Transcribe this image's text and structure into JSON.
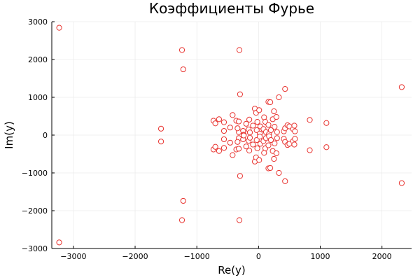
{
  "chart_data": {
    "type": "scatter",
    "title": "Коэффициенты Фурье",
    "xlabel": "Re(y)",
    "ylabel": "Im(y)",
    "xlim": [
      -3350,
      2480
    ],
    "ylim": [
      -3000,
      3000
    ],
    "xticks": [
      -3000,
      -2000,
      -1000,
      0,
      1000,
      2000
    ],
    "yticks": [
      -3000,
      -2000,
      -1000,
      0,
      1000,
      2000,
      3000
    ],
    "xtick_labels": [
      "−3000",
      "−2000",
      "−1000",
      "0",
      "1000",
      "2000"
    ],
    "ytick_labels": [
      "−3000",
      "−2000",
      "−1000",
      "0",
      "1000",
      "2000",
      "3000"
    ],
    "grid": true,
    "legend": "none",
    "marker": "open-circle",
    "color": "#e8332f",
    "points": [
      [
        -3230,
        2840
      ],
      [
        -3230,
        -2840
      ],
      [
        -1240,
        2250
      ],
      [
        -1240,
        -2250
      ],
      [
        -1220,
        1740
      ],
      [
        -1220,
        -1740
      ],
      [
        -310,
        2250
      ],
      [
        -310,
        -2250
      ],
      [
        2320,
        1270
      ],
      [
        2320,
        -1270
      ],
      [
        -1580,
        170
      ],
      [
        -1580,
        -170
      ],
      [
        -300,
        1080
      ],
      [
        -300,
        -1080
      ],
      [
        430,
        1220
      ],
      [
        430,
        -1220
      ],
      [
        330,
        1000
      ],
      [
        330,
        -1000
      ],
      [
        160,
        880
      ],
      [
        190,
        870
      ],
      [
        160,
        -880
      ],
      [
        190,
        -870
      ],
      [
        1100,
        320
      ],
      [
        1100,
        -320
      ],
      [
        830,
        400
      ],
      [
        830,
        -400
      ],
      [
        -730,
        380
      ],
      [
        -730,
        -380
      ],
      [
        -700,
        310
      ],
      [
        -700,
        -310
      ],
      [
        -640,
        420
      ],
      [
        -640,
        -420
      ],
      [
        -560,
        340
      ],
      [
        -560,
        -340
      ],
      [
        -560,
        110
      ],
      [
        -560,
        -110
      ],
      [
        -420,
        530
      ],
      [
        -420,
        -530
      ],
      [
        -460,
        200
      ],
      [
        -460,
        -200
      ],
      [
        -360,
        380
      ],
      [
        -360,
        -380
      ],
      [
        -320,
        360
      ],
      [
        -320,
        -360
      ],
      [
        -320,
        80
      ],
      [
        -320,
        -80
      ],
      [
        -340,
        180
      ],
      [
        -340,
        -180
      ],
      [
        -250,
        110
      ],
      [
        -250,
        -110
      ],
      [
        -240,
        10
      ],
      [
        -240,
        -10
      ],
      [
        -200,
        300
      ],
      [
        -200,
        -300
      ],
      [
        -150,
        410
      ],
      [
        -150,
        -410
      ],
      [
        -160,
        150
      ],
      [
        -160,
        -150
      ],
      [
        -140,
        70
      ],
      [
        -140,
        -70
      ],
      [
        -90,
        250
      ],
      [
        -90,
        -250
      ],
      [
        -60,
        700
      ],
      [
        -60,
        -700
      ],
      [
        -40,
        590
      ],
      [
        -40,
        -590
      ],
      [
        -20,
        350
      ],
      [
        -20,
        -350
      ],
      [
        -30,
        130
      ],
      [
        -30,
        -130
      ],
      [
        10,
        660
      ],
      [
        10,
        -660
      ],
      [
        30,
        230
      ],
      [
        30,
        -230
      ],
      [
        20,
        40
      ],
      [
        20,
        -40
      ],
      [
        80,
        160
      ],
      [
        80,
        -160
      ],
      [
        90,
        470
      ],
      [
        90,
        -470
      ],
      [
        110,
        350
      ],
      [
        110,
        -350
      ],
      [
        120,
        80
      ],
      [
        120,
        -80
      ],
      [
        160,
        270
      ],
      [
        160,
        -270
      ],
      [
        170,
        30
      ],
      [
        170,
        -30
      ],
      [
        200,
        130
      ],
      [
        200,
        -130
      ],
      [
        230,
        420
      ],
      [
        230,
        -420
      ],
      [
        250,
        630
      ],
      [
        250,
        -630
      ],
      [
        260,
        220
      ],
      [
        260,
        -220
      ],
      [
        290,
        480
      ],
      [
        290,
        -480
      ],
      [
        300,
        80
      ],
      [
        300,
        -80
      ],
      [
        410,
        100
      ],
      [
        410,
        -100
      ],
      [
        430,
        180
      ],
      [
        430,
        -180
      ],
      [
        470,
        260
      ],
      [
        470,
        -260
      ],
      [
        500,
        230
      ],
      [
        500,
        -230
      ],
      [
        560,
        160
      ],
      [
        560,
        -160
      ],
      [
        580,
        250
      ],
      [
        580,
        -250
      ],
      [
        590,
        100
      ],
      [
        590,
        -100
      ]
    ]
  }
}
